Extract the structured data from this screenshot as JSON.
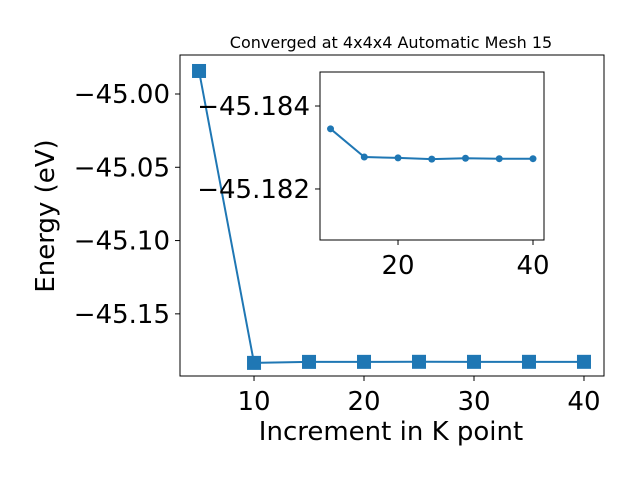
{
  "chart_data": [
    {
      "type": "line",
      "title": "Converged at 4x4x4 Automatic Mesh 15",
      "xlabel": "Increment in K point",
      "ylabel": "Energy (eV)",
      "x": [
        5,
        10,
        15,
        20,
        25,
        30,
        35,
        40
      ],
      "series": [
        {
          "color": "#1f77b4",
          "marker": "s",
          "values": [
            -44.9843,
            -45.18345,
            -45.18277,
            -45.18275,
            -45.18272,
            -45.18274,
            -45.18273,
            -45.18273
          ]
        }
      ],
      "xlim": [
        3.27,
        41.82
      ],
      "xticks": [
        10,
        20,
        30,
        40
      ],
      "ylim": [
        -45.1924,
        -44.9734
      ],
      "yticks": [
        {
          "value": -45.15,
          "label": "−45.15"
        },
        {
          "value": -45.1,
          "label": "−45.10"
        },
        {
          "value": -45.05,
          "label": "−45.05"
        },
        {
          "value": -45.0,
          "label": "−45.00"
        }
      ]
    },
    {
      "type": "line",
      "x": [
        10,
        15,
        20,
        25,
        30,
        35,
        40
      ],
      "series": [
        {
          "color": "#1f77b4",
          "marker": "o",
          "values": [
            -45.18345,
            -45.18277,
            -45.18275,
            -45.18272,
            -45.18274,
            -45.18273,
            -45.18273
          ]
        }
      ],
      "xlim": [
        8.44,
        41.63
      ],
      "xticks": [
        20,
        40
      ],
      "ylim": [
        -45.18077,
        -45.18482
      ],
      "yticks": [
        {
          "value": -45.182,
          "label": "−45.182"
        },
        {
          "value": -45.184,
          "label": "−45.184"
        }
      ]
    }
  ]
}
